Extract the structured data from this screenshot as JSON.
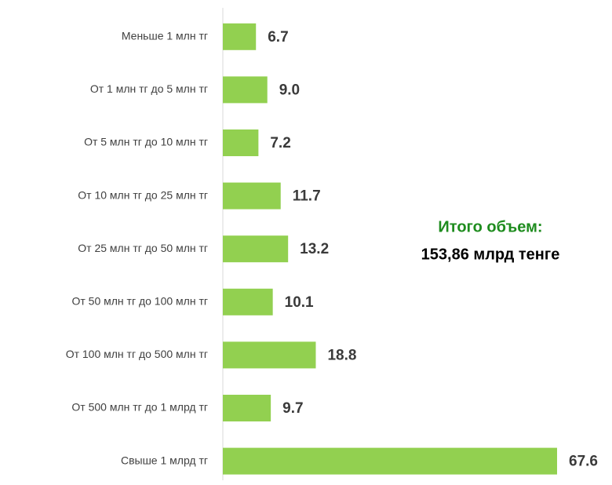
{
  "chart_data": {
    "type": "bar",
    "orientation": "horizontal",
    "categories": [
      "Меньше 1 млн тг",
      "От 1 млн тг до 5 млн тг",
      "От 5 млн тг до 10 млн тг",
      "От 10 млн тг до 25 млн тг",
      "От 25 млн тг до 50 млн тг",
      "От 50 млн тг до 100 млн тг",
      "От 100 млн тг до 500 млн тг",
      "От 500 млн тг до 1 млрд тг",
      "Свыше 1 млрд тг"
    ],
    "values": [
      6.7,
      9.0,
      7.2,
      11.7,
      13.2,
      10.1,
      18.8,
      9.7,
      67.6
    ],
    "value_labels": [
      "6.7",
      "9.0",
      "7.2",
      "11.7",
      "13.2",
      "10.1",
      "18.8",
      "9.7",
      "67.6"
    ],
    "color": "#92d050",
    "annotations": [
      {
        "text": "Итого объем:",
        "color": "#1e8c1e"
      },
      {
        "text": "153,86 млрд тенге",
        "color": "#000000"
      }
    ]
  }
}
